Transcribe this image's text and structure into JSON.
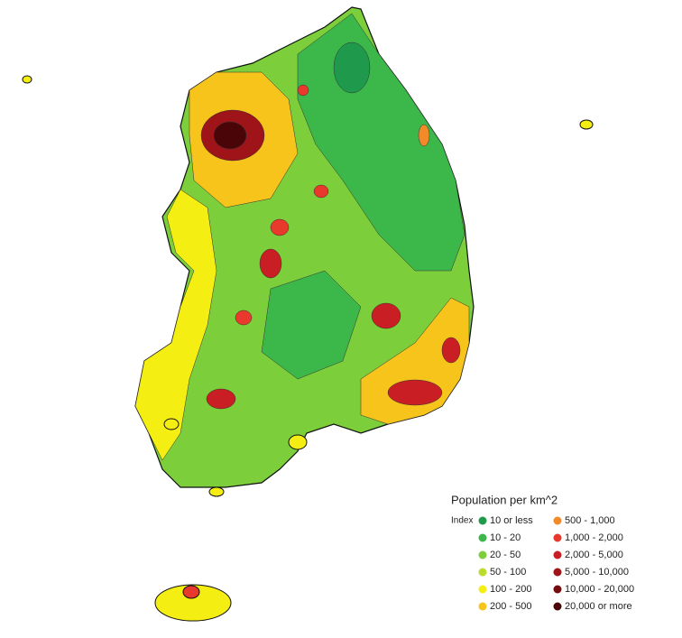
{
  "legend": {
    "title": "Population per km^2",
    "index_label": "Index",
    "items": [
      {
        "label": "10 or less",
        "color": "#1f9a4c"
      },
      {
        "label": "10 - 20",
        "color": "#3cb84a"
      },
      {
        "label": "20 - 50",
        "color": "#7ccf3a"
      },
      {
        "label": "50 - 100",
        "color": "#b9dc2e"
      },
      {
        "label": "100 - 200",
        "color": "#f5ee12"
      },
      {
        "label": "200 - 500",
        "color": "#f6c41a"
      },
      {
        "label": "500 - 1,000",
        "color": "#f28a2a"
      },
      {
        "label": "1,000 - 2,000",
        "color": "#e8392c"
      },
      {
        "label": "2,000 - 5,000",
        "color": "#c81e24"
      },
      {
        "label": "5,000 - 10,000",
        "color": "#9e1419"
      },
      {
        "label": "10,000 - 20,000",
        "color": "#740c10"
      },
      {
        "label": "20,000 or more",
        "color": "#4a0508"
      }
    ]
  }
}
